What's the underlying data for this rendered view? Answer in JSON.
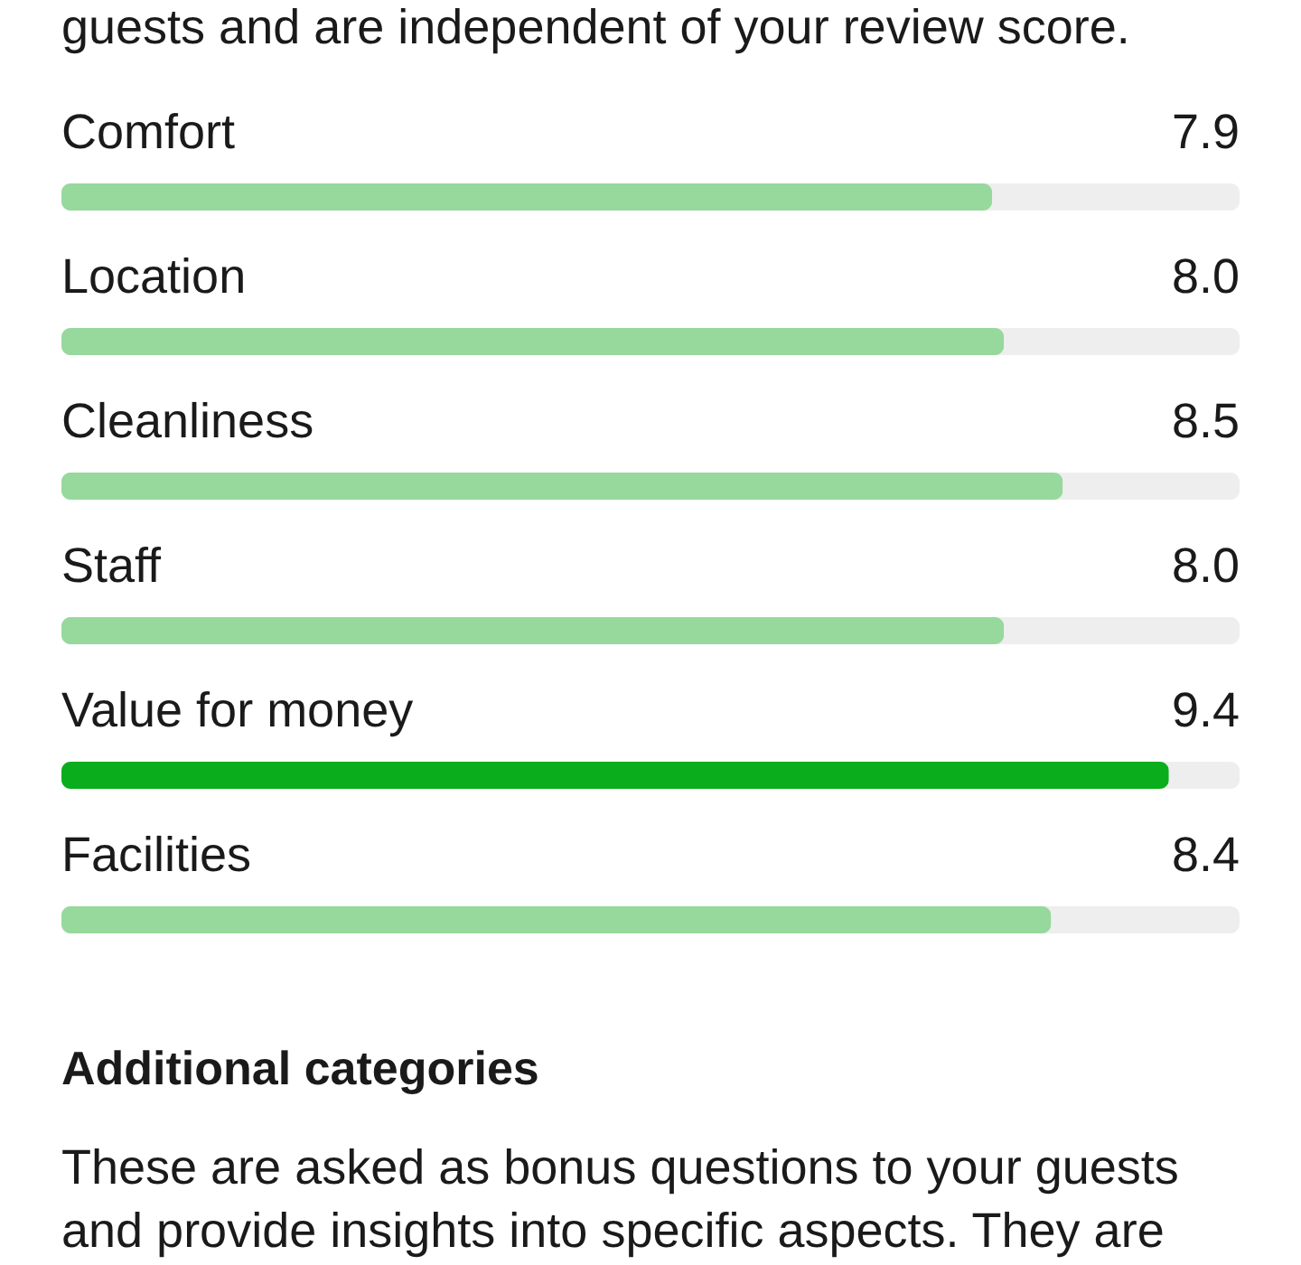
{
  "chart_data": {
    "type": "bar",
    "orientation": "horizontal",
    "subtitle": "guests and are independent of your review score.",
    "categories": [
      "Comfort",
      "Location",
      "Cleanliness",
      "Staff",
      "Value for money",
      "Facilities"
    ],
    "values": [
      7.9,
      8.0,
      8.5,
      8.0,
      9.4,
      8.4
    ],
    "colors": [
      "#97d89d",
      "#97d89d",
      "#97d89d",
      "#97d89d",
      "#0aad1b",
      "#97d89d"
    ],
    "value_labels": [
      "7.9",
      "8.0",
      "8.5",
      "8.0",
      "9.4",
      "8.4"
    ],
    "xlim": [
      0,
      10
    ],
    "tick_labels": "y",
    "annotations": [
      "Additional categories",
      "These are asked as bonus questions to your guests",
      "and provide insights into specific aspects. They are"
    ]
  }
}
